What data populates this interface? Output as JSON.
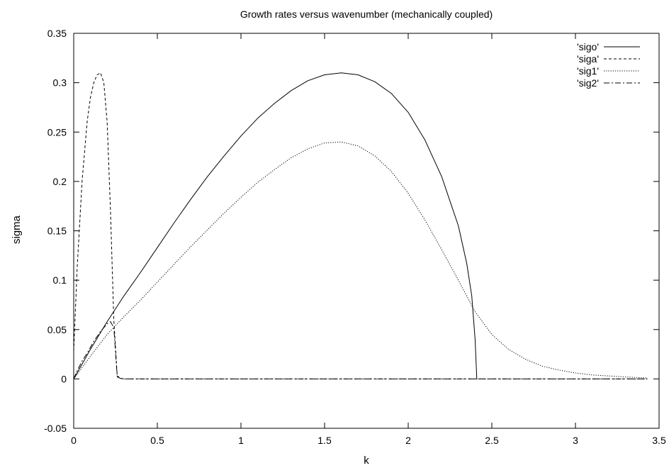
{
  "chart_data": {
    "type": "line",
    "title": "Growth rates versus wavenumber (mechanically coupled)",
    "xlabel": "k",
    "ylabel": "sigma",
    "xlim": [
      0,
      3.5
    ],
    "ylim": [
      -0.05,
      0.35
    ],
    "xticks": [
      "0",
      "0.5",
      "1",
      "1.5",
      "2",
      "2.5",
      "3",
      "3.5"
    ],
    "yticks": [
      "-0.05",
      "0",
      "0.05",
      "0.1",
      "0.15",
      "0.2",
      "0.25",
      "0.3",
      "0.35"
    ],
    "grid": false,
    "legend_position": "top-right",
    "series": [
      {
        "name": "'sigo'",
        "style": "solid",
        "color": "#000000",
        "x": [
          0,
          0.1,
          0.2,
          0.3,
          0.4,
          0.5,
          0.6,
          0.7,
          0.8,
          0.9,
          1.0,
          1.1,
          1.2,
          1.3,
          1.4,
          1.5,
          1.6,
          1.7,
          1.8,
          1.9,
          2.0,
          2.1,
          2.2,
          2.3,
          2.35,
          2.38,
          2.4,
          2.41
        ],
        "y": [
          0,
          0.03,
          0.058,
          0.084,
          0.108,
          0.133,
          0.158,
          0.182,
          0.205,
          0.226,
          0.246,
          0.264,
          0.279,
          0.292,
          0.302,
          0.308,
          0.31,
          0.308,
          0.301,
          0.289,
          0.27,
          0.242,
          0.205,
          0.155,
          0.117,
          0.084,
          0.04,
          0
        ]
      },
      {
        "name": "'siga'",
        "style": "dashed",
        "color": "#000000",
        "x": [
          0,
          0.02,
          0.05,
          0.08,
          0.1,
          0.12,
          0.14,
          0.16,
          0.18,
          0.2,
          0.22,
          0.24,
          0.26,
          0.28,
          0.3,
          0.4,
          0.6,
          1.0,
          1.5,
          2.0,
          2.5,
          3.0,
          3.43
        ],
        "y": [
          0.028,
          0.11,
          0.2,
          0.26,
          0.285,
          0.3,
          0.308,
          0.31,
          0.3,
          0.26,
          0.17,
          0.06,
          0.003,
          0.0008,
          0,
          0,
          0,
          0,
          0,
          0,
          0,
          0,
          0
        ]
      },
      {
        "name": "'sig1'",
        "style": "dotted",
        "color": "#000000",
        "x": [
          0,
          0.1,
          0.2,
          0.3,
          0.4,
          0.5,
          0.6,
          0.7,
          0.8,
          0.9,
          1.0,
          1.1,
          1.2,
          1.3,
          1.4,
          1.5,
          1.6,
          1.7,
          1.8,
          1.9,
          2.0,
          2.1,
          2.2,
          2.3,
          2.4,
          2.5,
          2.6,
          2.7,
          2.8,
          2.9,
          3.0,
          3.1,
          3.2,
          3.3,
          3.43
        ],
        "y": [
          0,
          0.023,
          0.045,
          0.063,
          0.08,
          0.098,
          0.116,
          0.134,
          0.151,
          0.168,
          0.184,
          0.199,
          0.212,
          0.224,
          0.233,
          0.239,
          0.24,
          0.236,
          0.226,
          0.21,
          0.188,
          0.161,
          0.131,
          0.1,
          0.068,
          0.045,
          0.03,
          0.02,
          0.013,
          0.009,
          0.006,
          0.004,
          0.003,
          0.002,
          0.001
        ]
      },
      {
        "name": "'sig2'",
        "style": "dashdot",
        "color": "#000000",
        "x": [
          0,
          0.02,
          0.05,
          0.08,
          0.1,
          0.12,
          0.14,
          0.16,
          0.18,
          0.2,
          0.22,
          0.24,
          0.26,
          0.28,
          0.3,
          0.4,
          0.6,
          1.0,
          1.5,
          2.0,
          2.5,
          3.0,
          3.43
        ],
        "y": [
          0,
          0.008,
          0.018,
          0.026,
          0.032,
          0.038,
          0.043,
          0.048,
          0.052,
          0.056,
          0.058,
          0.052,
          0.002,
          0.0005,
          0,
          0,
          0,
          0,
          0,
          0,
          0,
          0,
          0
        ]
      }
    ]
  }
}
